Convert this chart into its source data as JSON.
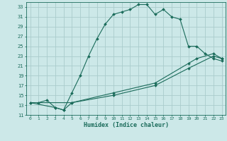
{
  "xlabel": "Humidex (Indice chaleur)",
  "xlim": [
    -0.5,
    23.5
  ],
  "ylim": [
    11,
    34
  ],
  "yticks": [
    11,
    13,
    15,
    17,
    19,
    21,
    23,
    25,
    27,
    29,
    31,
    33
  ],
  "xticks": [
    0,
    1,
    2,
    3,
    4,
    5,
    6,
    7,
    8,
    9,
    10,
    11,
    12,
    13,
    14,
    15,
    16,
    17,
    18,
    19,
    20,
    21,
    22,
    23
  ],
  "bg_color": "#cce8e8",
  "grid_color": "#aacccc",
  "line_color": "#1a6b5a",
  "curve1_x": [
    1,
    2,
    3,
    4,
    5,
    6,
    7,
    8,
    9,
    10,
    11,
    12,
    13,
    14,
    15,
    16,
    17,
    18,
    19,
    20,
    21,
    22,
    23
  ],
  "curve1_y": [
    13.5,
    14.0,
    12.5,
    12.0,
    15.5,
    19.0,
    23.0,
    26.5,
    29.5,
    31.5,
    32.0,
    32.5,
    33.5,
    33.5,
    31.5,
    32.5,
    31.0,
    30.5,
    25.0,
    25.0,
    23.5,
    22.5,
    22.0
  ],
  "curve2_x": [
    0,
    3,
    4,
    5,
    10,
    15,
    19,
    20,
    22,
    23
  ],
  "curve2_y": [
    13.5,
    12.5,
    12.0,
    13.5,
    15.5,
    17.5,
    21.5,
    22.5,
    23.5,
    22.5
  ],
  "curve3_x": [
    0,
    5,
    10,
    15,
    19,
    22,
    23
  ],
  "curve3_y": [
    13.5,
    13.5,
    15.0,
    17.0,
    20.5,
    23.0,
    22.5
  ]
}
